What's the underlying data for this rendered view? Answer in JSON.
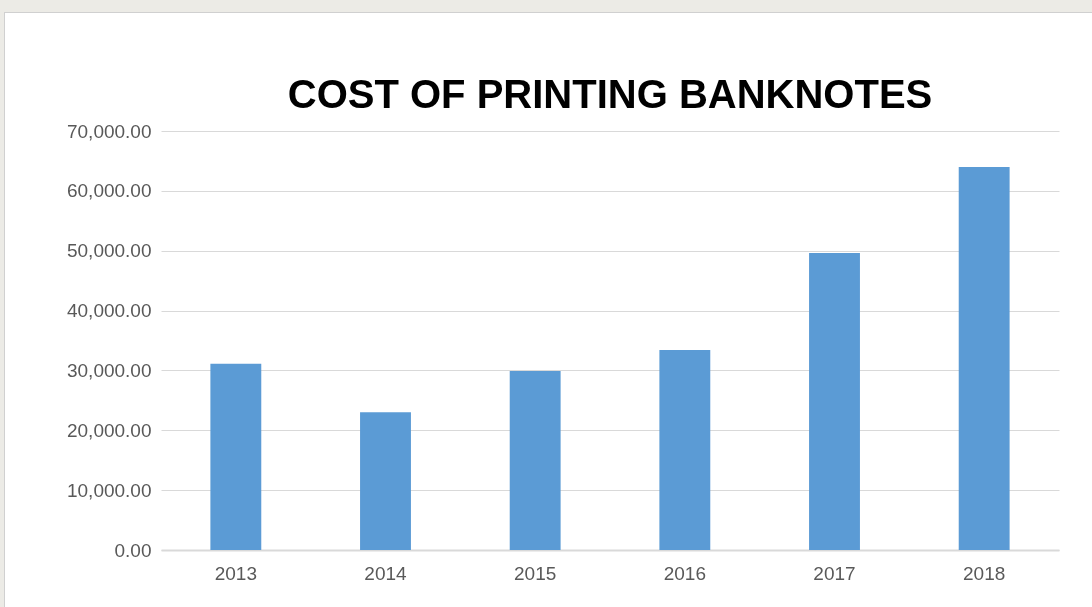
{
  "chart_data": {
    "type": "bar",
    "title": "COST OF PRINTING BANKNOTES",
    "categories": [
      "2013",
      "2014",
      "2015",
      "2016",
      "2017",
      "2018"
    ],
    "values": [
      31100,
      23000,
      29900,
      33400,
      49600,
      64000
    ],
    "color": "#5b9bd5",
    "ylim": [
      0,
      70000
    ],
    "yticks": [
      {
        "value": 0,
        "label": "0.00"
      },
      {
        "value": 10000,
        "label": "10,000.00"
      },
      {
        "value": 20000,
        "label": "20,000.00"
      },
      {
        "value": 30000,
        "label": "30,000.00"
      },
      {
        "value": 40000,
        "label": "40,000.00"
      },
      {
        "value": 50000,
        "label": "50,000.00"
      },
      {
        "value": 60000,
        "label": "60,000.00"
      },
      {
        "value": 70000,
        "label": "70,000.00"
      }
    ],
    "grid": true
  }
}
